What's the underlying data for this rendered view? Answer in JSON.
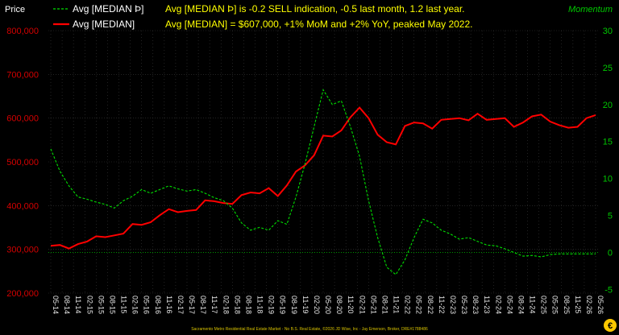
{
  "colors": {
    "background": "#000000",
    "price_axis": "#d40000",
    "momentum_axis": "#00c800",
    "grid": "#3a3a3a",
    "annotation": "#ffff00",
    "series_price": "#ff0000",
    "series_momentum": "#00e000",
    "footer": "#d8c200",
    "logo": "#ffc800"
  },
  "labels": {
    "left_title": "Price",
    "right_title": "Momentum",
    "legend_momentum": "Avg [MEDIAN Þ]",
    "legend_price": "Avg [MEDIAN]",
    "annotation_momentum": "Avg [MEDIAN Þ] is -0.2 SELL indication, -0.5 last month, 1.2 last year.",
    "annotation_price": "Avg [MEDIAN] = $607,000, +1% MoM and +2% YoY, peaked May 2022.",
    "footer": "Sacramento Metro Residential Real Estate Market - No B.S. Real Estate, ©2026 JD Wise, Inc - Jay Emerson, Broker, DRE#1788486"
  },
  "logo_icon": "wise-logo-icon",
  "chart_data": {
    "type": "line",
    "grid": true,
    "y_left": {
      "ticks": [
        200000,
        300000,
        400000,
        500000,
        600000,
        700000,
        800000
      ],
      "tick_labels": [
        "200,000",
        "300,000",
        "400,000",
        "500,000",
        "600,000",
        "700,000",
        "800,000"
      ],
      "range": [
        200000,
        800000
      ]
    },
    "y_right": {
      "ticks": [
        -5,
        0,
        5,
        10,
        15,
        20,
        25,
        30
      ],
      "tick_labels": [
        "-5",
        "0",
        "5",
        "10",
        "15",
        "20",
        "25",
        "30"
      ],
      "range": [
        -5.5,
        30
      ]
    },
    "x_ticks": [
      "05-14",
      "08-14",
      "11-14",
      "02-15",
      "05-15",
      "08-15",
      "11-15",
      "02-16",
      "05-16",
      "08-16",
      "11-16",
      "02-17",
      "05-17",
      "08-17",
      "11-17",
      "02-18",
      "05-18",
      "08-18",
      "11-18",
      "02-19",
      "05-19",
      "08-19",
      "11-19",
      "02-20",
      "05-20",
      "08-20",
      "11-20",
      "02-21",
      "05-21",
      "08-21",
      "11-21",
      "02-22",
      "05-22",
      "08-22",
      "11-22",
      "02-23",
      "05-23",
      "08-23",
      "11-23",
      "02-24",
      "05-24",
      "08-24",
      "11-24",
      "02-25",
      "05-25",
      "08-25",
      "11-25",
      "02-26",
      "05-26"
    ],
    "series": [
      {
        "name": "Avg [MEDIAN]",
        "axis": "left",
        "style": "solid",
        "values": [
          308000,
          310000,
          302000,
          312000,
          318000,
          330000,
          328000,
          332000,
          336000,
          358000,
          356000,
          362000,
          378000,
          392000,
          385000,
          388000,
          390000,
          412000,
          410000,
          406000,
          404000,
          424000,
          430000,
          428000,
          440000,
          422000,
          446000,
          478000,
          492000,
          515000,
          560000,
          558000,
          572000,
          602000,
          624000,
          600000,
          562000,
          545000,
          540000,
          582000,
          590000,
          588000,
          576000,
          596000,
          598000,
          600000,
          595000,
          610000,
          596000,
          598000,
          600000,
          580000,
          590000,
          604000,
          608000,
          592000,
          584000,
          578000,
          580000,
          600000,
          607000
        ]
      },
      {
        "name": "Avg [MEDIAN Þ]",
        "axis": "right",
        "style": "dashed",
        "values": [
          14.0,
          11.0,
          9.0,
          7.5,
          7.2,
          6.8,
          6.5,
          6.0,
          7.0,
          7.6,
          8.5,
          8.0,
          8.5,
          9.0,
          8.6,
          8.3,
          8.5,
          8.0,
          7.4,
          7.0,
          6.0,
          4.0,
          3.0,
          3.4,
          3.0,
          4.3,
          3.8,
          7.5,
          12.0,
          17.0,
          22.0,
          20.0,
          20.5,
          17.0,
          13.0,
          7.0,
          2.0,
          -2.0,
          -3.0,
          -1.0,
          2.0,
          4.5,
          4.0,
          3.0,
          2.5,
          1.8,
          2.0,
          1.5,
          1.0,
          0.9,
          0.5,
          0.0,
          -0.5,
          -0.4,
          -0.6,
          -0.3,
          -0.2,
          -0.2,
          -0.2,
          -0.2,
          -0.2
        ]
      }
    ]
  }
}
